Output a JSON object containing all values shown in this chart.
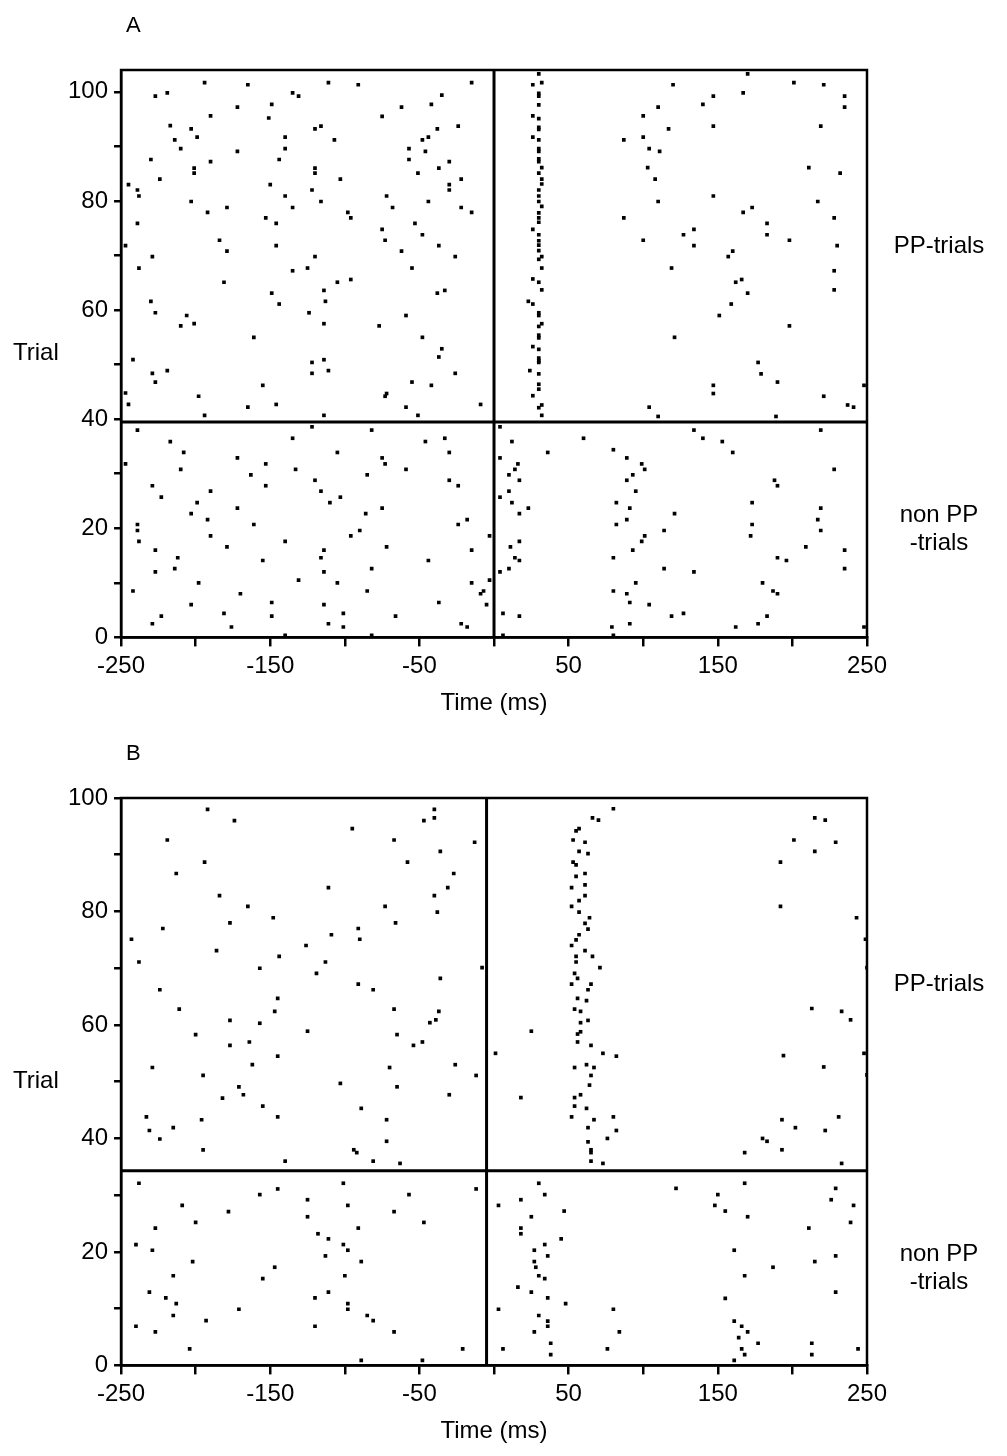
{
  "chart_data": [
    {
      "type": "scatter",
      "title": "A",
      "xlabel": "Time (ms)",
      "ylabel": "Trial",
      "xlim": [
        -250,
        250
      ],
      "ylim": [
        0,
        104
      ],
      "xticks": [
        -250,
        {
          "value": -200,
          "label": null
        },
        -150,
        {
          "value": -100,
          "label": null
        },
        -50,
        {
          "value": 0,
          "label": null
        },
        50,
        {
          "value": 100,
          "label": null
        },
        150,
        {
          "value": 200,
          "label": null
        },
        250
      ],
      "yticks": [
        0,
        {
          "value": 10,
          "label": null
        },
        20,
        {
          "value": 30,
          "label": null
        },
        40,
        {
          "value": 50,
          "label": null
        },
        60,
        {
          "value": 70,
          "label": null
        },
        80,
        {
          "value": 90,
          "label": null
        },
        100
      ],
      "grid": false,
      "legend": false,
      "marker": "square",
      "ref_lines": [
        {
          "axis": "x",
          "value": 0,
          "color": "#000000"
        },
        {
          "axis": "y",
          "value": 39.5,
          "color": "#000000"
        }
      ],
      "annotations": [
        "PP-trials",
        "non PP\n-trials"
      ],
      "series": [
        {
          "color": "#000000",
          "x": [
            -194,
            -227,
            -219,
            -165,
            -135,
            -131,
            -111,
            -91,
            -15,
            -35,
            -172,
            -149,
            -190,
            -151,
            -75,
            -62,
            -42,
            -217,
            -203,
            -199,
            -214,
            -210,
            -140,
            -140,
            -120,
            -116,
            -107,
            -48,
            -44,
            -38,
            -24,
            -57,
            -46,
            -230,
            -190,
            -172,
            -144,
            -201,
            -201,
            -120,
            -120,
            -57,
            -30,
            -37,
            -51,
            -224,
            -103,
            -22,
            -245,
            -239,
            -238,
            -150,
            -140,
            -122,
            -30,
            -30,
            -72,
            -203,
            -179,
            -192,
            -135,
            -116,
            -98,
            -96,
            -68,
            -44,
            -22,
            -15,
            -153,
            -146,
            -239,
            -75,
            -53,
            -73,
            -48,
            -247,
            -184,
            -179,
            -146,
            -37,
            -62,
            -229,
            -120,
            -26,
            -238,
            -135,
            -125,
            -55,
            -181,
            -105,
            -96,
            -149,
            -114,
            -38,
            -33,
            -230,
            -144,
            -113,
            -227,
            -206,
            -210,
            -201,
            -124,
            -114,
            -77,
            -59,
            -161,
            -48,
            -242,
            -122,
            -114,
            -35,
            -37,
            -229,
            -219,
            -227,
            -122,
            -111,
            -26,
            -155,
            -55,
            -42,
            -247,
            -198,
            -72,
            -73,
            -245,
            -165,
            -146,
            -59,
            -9,
            -194,
            -114,
            -51
          ],
          "values": [
            101.7,
            99.2,
            99.8,
            101.3,
            99.8,
            99.2,
            101.7,
            101.3,
            101.7,
            99.4,
            97.2,
            97.7,
            95.6,
            95.2,
            95.5,
            97.2,
            97.7,
            93.8,
            93.2,
            91.7,
            91.2,
            89.6,
            91.7,
            89.6,
            93.2,
            93.7,
            91.2,
            91.2,
            91.7,
            93.2,
            93.7,
            89.6,
            89.1,
            87.6,
            87.2,
            89.1,
            87.6,
            86,
            85.1,
            86,
            85.1,
            87.6,
            87.2,
            86,
            85.1,
            84,
            84,
            84,
            83,
            82,
            80.9,
            83,
            80.9,
            82,
            83,
            82,
            80.9,
            79.9,
            78.8,
            77.9,
            78.8,
            79.9,
            77.9,
            76.9,
            78.8,
            79.9,
            78.8,
            77.9,
            76.9,
            75.9,
            75.9,
            74.8,
            75.9,
            72.8,
            73.8,
            71.8,
            72.8,
            70.8,
            71.8,
            71.8,
            70.8,
            69.8,
            69.8,
            69.8,
            67.7,
            67.2,
            67.7,
            67.7,
            65.1,
            65.1,
            65.6,
            63.1,
            63.6,
            63.1,
            63.6,
            61.6,
            61.1,
            61.6,
            59.5,
            59,
            57.1,
            57.5,
            59.5,
            57.5,
            57.1,
            59,
            55,
            55,
            50.9,
            50.4,
            50.9,
            52.9,
            51.4,
            48.4,
            48.9,
            46.8,
            48.4,
            48.9,
            48.4,
            46.2,
            46.8,
            46.2,
            44.8,
            44.2,
            44.7,
            44.2,
            42.7,
            42.2,
            42.7,
            42.2,
            42.7,
            40.7,
            40.7,
            40.7
          ]
        },
        {
          "color": "#000000",
          "x": [
            -239,
            -122,
            -82,
            -217,
            -135,
            -46,
            -33,
            -208,
            -105,
            -30,
            -247,
            -172,
            -153,
            -75,
            -73,
            -210,
            -133,
            -59,
            -163,
            -85,
            -229,
            -153,
            -120,
            -30,
            -24,
            -223,
            -190,
            -116,
            -103,
            -199,
            -110,
            -203,
            -172,
            -86,
            -75,
            -192,
            -239,
            -239,
            -161,
            -24,
            -18,
            -238,
            -190,
            -140,
            -96,
            -90,
            -3,
            -179,
            -72,
            -227,
            -15,
            -212,
            -155,
            -116,
            -114,
            -44,
            -227,
            -214,
            -114,
            -82,
            -198,
            -131,
            -105,
            -15,
            -3,
            -242,
            -170,
            -85,
            -9,
            -7,
            -5,
            -203,
            -149,
            -114,
            -37,
            -223,
            -181,
            -149,
            -101,
            -66,
            -229,
            -176,
            -111,
            -101,
            -22,
            -18,
            -140,
            -82
          ],
          "values": [
            38,
            38.6,
            38,
            35.9,
            36.5,
            35.9,
            36.5,
            33.9,
            33.9,
            33.9,
            31.8,
            32.9,
            31.8,
            32.9,
            31.8,
            30.8,
            30.8,
            30.8,
            29.8,
            29.8,
            27.8,
            27.8,
            28.8,
            28.8,
            27.8,
            25.7,
            26.8,
            26.8,
            25.7,
            24.7,
            24.7,
            22.7,
            23.7,
            22.7,
            23.7,
            21.6,
            20.7,
            19.6,
            20.7,
            20.7,
            21.6,
            17.6,
            18.6,
            17.6,
            18.6,
            19.6,
            18.6,
            16.6,
            16.6,
            16,
            16,
            14.6,
            14.1,
            14.6,
            16,
            14.1,
            12,
            12.6,
            12,
            12.6,
            10,
            10.5,
            10,
            10,
            10.5,
            8.5,
            8,
            8.5,
            8,
            8.5,
            6,
            6,
            6.4,
            6,
            6.4,
            3.9,
            4.4,
            3.9,
            4.4,
            3.9,
            2.5,
            1.9,
            2.5,
            1.9,
            2.5,
            1.9,
            0.4,
            0.4
          ]
        },
        {
          "color": "#000000",
          "x": [
            30,
            32,
            26,
            30,
            30,
            30,
            26,
            30,
            30,
            30,
            26,
            30,
            30,
            30,
            30,
            30,
            32,
            30,
            32,
            32,
            30,
            30,
            30,
            32,
            30,
            30,
            30,
            26,
            30,
            30,
            30,
            30,
            32,
            30,
            32,
            26,
            30,
            32,
            23,
            26,
            30,
            30,
            32,
            30,
            30,
            30,
            26,
            30,
            30,
            30,
            30,
            24,
            30,
            30,
            30,
            26,
            32,
            30,
            32
          ],
          "values": [
            103.3,
            101.7,
            101.3,
            99.7,
            99.2,
            97.6,
            95.6,
            95.1,
            93.5,
            93.1,
            91.7,
            91.2,
            89.6,
            89.1,
            87.7,
            87.2,
            86.1,
            85.1,
            84,
            83.1,
            82,
            80.9,
            79.9,
            79,
            77.8,
            76.9,
            76.1,
            74.8,
            73.8,
            72.7,
            71.9,
            70.9,
            69.8,
            69.3,
            67.7,
            65.7,
            65.1,
            63.7,
            61.6,
            61.1,
            59.5,
            59,
            57.5,
            57,
            55.4,
            54.9,
            53.3,
            52.8,
            51.2,
            50.7,
            50.4,
            48.9,
            48.3,
            46.4,
            45.5,
            44.3,
            42.6,
            42.1,
            40.7
          ]
        },
        {
          "color": "#000000",
          "x": [
            120,
            170,
            201,
            221,
            147,
            167,
            235,
            235,
            140,
            110,
            100,
            147,
            219,
            117,
            87,
            100,
            104,
            111,
            103,
            211,
            232,
            108,
            147,
            110,
            217,
            173,
            167,
            87,
            228,
            183,
            134,
            127,
            183,
            100,
            198,
            134,
            230,
            160,
            157,
            119,
            228,
            166,
            162,
            170,
            228,
            159,
            151,
            198,
            121,
            177,
            179,
            190,
            147,
            147,
            221,
            248,
            104,
            110,
            189,
            237,
            241
          ],
          "values": [
            101.3,
            103.3,
            101.7,
            101.3,
            99.2,
            99.8,
            99.2,
            97.2,
            97.7,
            97.2,
            95.6,
            93.7,
            93.7,
            93.2,
            91.2,
            91.7,
            89.6,
            89.1,
            86.1,
            86.1,
            85.1,
            84,
            80.9,
            79.9,
            79.9,
            78.8,
            77.9,
            76.9,
            76.9,
            75.9,
            74.8,
            73.8,
            73.8,
            72.8,
            72.8,
            71.8,
            71.8,
            70.8,
            69.8,
            67.7,
            67.2,
            65.6,
            65.1,
            63.1,
            63.7,
            61.1,
            59,
            57.1,
            55,
            50.4,
            48.3,
            46.8,
            46.2,
            44.7,
            44.2,
            46.2,
            42.2,
            40.5,
            40.5,
            42.6,
            42.2
          ]
        },
        {
          "color": "#000000",
          "x": [
            4,
            12,
            60,
            36,
            134,
            140,
            153,
            160,
            219,
            80,
            4,
            89,
            16,
            14,
            99,
            101,
            10,
            93,
            17,
            89,
            188,
            190,
            228,
            10,
            95,
            4,
            12,
            82,
            173,
            23,
            91,
            219,
            17,
            121,
            89,
            217,
            82,
            173,
            114,
            219,
            101,
            172,
            17,
            99,
            11,
            209,
            93,
            235,
            14,
            17,
            80,
            190,
            196,
            10,
            4,
            114,
            134,
            235,
            95,
            180,
            80,
            89,
            187,
            190,
            91,
            104,
            6,
            17,
            119,
            127,
            183,
            79,
            91,
            162,
            177,
            248,
            6,
            80
          ],
          "values": [
            38.6,
            35.9,
            36.5,
            33.9,
            38,
            36.5,
            35.9,
            33.9,
            38,
            34.4,
            32.9,
            32.9,
            31.8,
            30.8,
            31.8,
            30.8,
            29.8,
            29.8,
            28.8,
            28.8,
            28.8,
            27.8,
            30.8,
            26.8,
            26.8,
            25.7,
            24.7,
            24.7,
            24.7,
            23.7,
            23.7,
            23.7,
            22.7,
            22.7,
            21.6,
            21.6,
            20.7,
            20.7,
            19.6,
            19.6,
            18.6,
            18.6,
            17.6,
            17.6,
            16.6,
            16.6,
            16,
            16,
            14.6,
            14.1,
            14.6,
            14.6,
            14.1,
            12.6,
            12,
            12.6,
            12,
            12.6,
            10,
            10,
            8.5,
            8,
            8.5,
            8,
            6.4,
            6,
            4.4,
            3.9,
            3.9,
            4.4,
            3.9,
            1.9,
            2.5,
            1.9,
            2.5,
            1.9,
            0.4,
            0.4
          ]
        }
      ]
    },
    {
      "type": "scatter",
      "title": "B",
      "xlabel": "Time (ms)",
      "ylabel": "Trial",
      "xlim": [
        -250,
        250
      ],
      "ylim": [
        0,
        100
      ],
      "xticks": [
        -250,
        {
          "value": -200,
          "label": null
        },
        -150,
        {
          "value": -100,
          "label": null
        },
        -50,
        {
          "value": 0,
          "label": null
        },
        50,
        {
          "value": 100,
          "label": null
        },
        150,
        {
          "value": 200,
          "label": null
        },
        250
      ],
      "yticks": [
        0,
        {
          "value": 10,
          "label": null
        },
        20,
        {
          "value": 30,
          "label": null
        },
        40,
        {
          "value": 50,
          "label": null
        },
        60,
        {
          "value": 70,
          "label": null
        },
        80,
        {
          "value": 90,
          "label": null
        },
        100
      ],
      "grid": false,
      "legend": false,
      "marker": "square",
      "ref_lines": [
        {
          "axis": "x",
          "value": -5,
          "color": "#000000"
        },
        {
          "axis": "y",
          "value": 34.3,
          "color": "#000000"
        }
      ],
      "annotations": [
        "PP-trials",
        "non PP\n-trials"
      ],
      "series": [
        {
          "color": "#000000",
          "x": [
            -192,
            -174,
            -40,
            -40,
            -47,
            -95,
            -219,
            -67,
            -13,
            -36,
            -194,
            -58,
            -213,
            -27,
            -111,
            -31,
            -184,
            -40,
            -165,
            -73,
            -38,
            -148,
            -177,
            -66,
            -222,
            -91,
            -243,
            -109,
            -90,
            -186,
            -126,
            -144,
            -238,
            -113,
            -157,
            -119,
            -8,
            -224,
            -91,
            -81,
            -36,
            -145,
            -211,
            -147,
            -67,
            -37,
            -177,
            -157,
            -43,
            -39,
            -200,
            -125,
            -65,
            -177,
            -164,
            -54,
            -48,
            -145,
            -229,
            -162,
            -70,
            -26,
            -195,
            -12,
            -103,
            -171,
            -65,
            -168,
            -182,
            -30,
            -155,
            -89,
            -233,
            -145,
            -196,
            -72,
            -231,
            -215,
            -224,
            -72,
            -195,
            -94,
            -92,
            -140,
            -81,
            -63
          ],
          "values": [
            98,
            96,
            98,
            96.5,
            96,
            94.6,
            92.6,
            92.6,
            92.2,
            90.6,
            88.7,
            88.7,
            86.7,
            86.7,
            84.2,
            84.2,
            82.8,
            82.8,
            80.9,
            80.9,
            79.9,
            78.9,
            78,
            78,
            77,
            77,
            75.1,
            75.9,
            75.1,
            73.1,
            74,
            72.1,
            71.1,
            71.1,
            70,
            69.1,
            70.1,
            66.2,
            67.2,
            66.2,
            68.2,
            64.7,
            62.8,
            62.4,
            62.8,
            62.4,
            60.8,
            60.3,
            60.4,
            60.9,
            58.3,
            58.9,
            58.3,
            56.4,
            57,
            56.4,
            57,
            54.5,
            52.5,
            53,
            52.5,
            53,
            51.1,
            51.1,
            49.7,
            49.1,
            49.1,
            47.7,
            47.1,
            47.7,
            45.7,
            45.3,
            43.8,
            43.8,
            43.3,
            43.3,
            41.4,
            41.9,
            39.9,
            39.5,
            38,
            38,
            37.5,
            36,
            36,
            35.6
          ]
        },
        {
          "color": "#000000",
          "x": [
            -238,
            -101,
            -145,
            -12,
            -157,
            -57,
            -209,
            -125,
            -98,
            -178,
            -67,
            -200,
            -125,
            -47,
            -227,
            -91,
            -118,
            -111,
            -240,
            -101,
            -229,
            -98,
            -113,
            -202,
            -89,
            -147,
            -215,
            -100,
            -155,
            -231,
            -111,
            -220,
            -120,
            -213,
            -98,
            -171,
            -98,
            -215,
            -85,
            -81,
            -193,
            -240,
            -120,
            -227,
            -67,
            -204,
            -21,
            -89,
            -48
          ],
          "values": [
            32.1,
            32.1,
            31.1,
            31.1,
            30.1,
            30.1,
            28.2,
            29.2,
            28.2,
            27.1,
            27.1,
            25.2,
            26.2,
            25.2,
            24.2,
            24.2,
            23.2,
            22.3,
            21.3,
            21.3,
            20.3,
            20.3,
            19.3,
            18.3,
            18.3,
            17.3,
            15.8,
            15.8,
            15.3,
            12.9,
            12.9,
            11.9,
            11.9,
            10.9,
            10.9,
            9.9,
            9.9,
            8.8,
            8.8,
            7.9,
            7.9,
            6.9,
            6.9,
            5.9,
            5.9,
            2.9,
            2.9,
            0.9,
            0.9
          ]
        },
        {
          "color": "#000000",
          "x": [
            80,
            66,
            70,
            57,
            55,
            53,
            61,
            57,
            63,
            53,
            55,
            61,
            55,
            52,
            61,
            61,
            57,
            52,
            57,
            64,
            61,
            63,
            57,
            55,
            52,
            61,
            66,
            55,
            55,
            71,
            54,
            56,
            52,
            65,
            63,
            56,
            62,
            54,
            58,
            63,
            58,
            56,
            58,
            56,
            65,
            73,
            82,
            54,
            62,
            67,
            65,
            64,
            58,
            54,
            54,
            62,
            52,
            67,
            80,
            63,
            82,
            76,
            63,
            65,
            65,
            65,
            73
          ],
          "values": [
            98.1,
            96.5,
            96.1,
            94.6,
            94.2,
            92.6,
            92.2,
            90.6,
            90.2,
            88.7,
            88.2,
            86.7,
            86.2,
            84.2,
            84.7,
            82.8,
            81.9,
            80.9,
            79.9,
            78.9,
            77.9,
            76.9,
            75.9,
            75,
            74,
            73.1,
            72.1,
            72.1,
            71.1,
            70.1,
            69.1,
            68.2,
            67.2,
            67.2,
            66.2,
            64.7,
            64.3,
            62.8,
            62.4,
            60.8,
            60.4,
            58.4,
            58.8,
            57,
            56.4,
            55,
            54.5,
            52.5,
            53,
            52.5,
            51.1,
            49.4,
            47.7,
            47.2,
            45.7,
            45.3,
            43.8,
            43.3,
            43.8,
            41.9,
            41.4,
            40,
            39.4,
            38,
            37.5,
            36,
            35.6
          ]
        },
        {
          "color": "#000000",
          "x": [
            25,
            1,
            18,
            215,
            222,
            201,
            229,
            215,
            192,
            192,
            243,
            249,
            250,
            213,
            233,
            239,
            194,
            248,
            221,
            250,
            193,
            202,
            222,
            231,
            180,
            183,
            168,
            193,
            233
          ],
          "values": [
            58.9,
            55,
            47.2,
            96.5,
            96.1,
            92.6,
            92.2,
            90.6,
            88.7,
            80.9,
            78.9,
            75.1,
            70.1,
            62.9,
            62.4,
            60.9,
            54.6,
            55,
            52.6,
            51.2,
            43.3,
            41.9,
            41.4,
            43.8,
            40,
            39.5,
            37.5,
            38,
            35.6
          ]
        },
        {
          "color": "#000000",
          "x": [
            30,
            34,
            3,
            18,
            47,
            25,
            18,
            18,
            45,
            34,
            27,
            36,
            27,
            28,
            30,
            34,
            16,
            25,
            36,
            48,
            3,
            80,
            30,
            36,
            36,
            27,
            84,
            38,
            6,
            76,
            38,
            122,
            168,
            150,
            148,
            155,
            170,
            229,
            226,
            241,
            239,
            211,
            161,
            229,
            215,
            187,
            168,
            229,
            155,
            161,
            166,
            170,
            164,
            177,
            166,
            168,
            161,
            213,
            213,
            244
          ],
          "values": [
            32.1,
            30.1,
            28.2,
            29.2,
            27.2,
            26.2,
            24.2,
            23.2,
            22.3,
            21.3,
            20.3,
            19.3,
            18.3,
            17.3,
            15.8,
            15.3,
            13.8,
            12.9,
            11.9,
            10.9,
            9.9,
            9.9,
            8.8,
            7.8,
            6.9,
            5.9,
            5.9,
            3.9,
            2.9,
            2.9,
            1.9,
            31.2,
            32.1,
            30.1,
            28.2,
            27.2,
            26.2,
            31.2,
            29.2,
            28.2,
            25.2,
            24.2,
            20.3,
            19.3,
            18.3,
            17.3,
            15.8,
            12.9,
            11.8,
            7.8,
            6.9,
            5.9,
            4.9,
            3.9,
            2.9,
            1.9,
            0.9,
            3.9,
            1.9,
            2.9
          ]
        }
      ]
    }
  ]
}
